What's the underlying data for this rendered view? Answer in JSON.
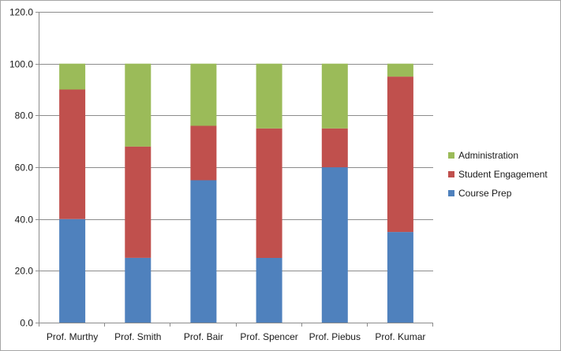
{
  "chart_data": {
    "type": "bar",
    "stacked": true,
    "categories": [
      "Prof. Murthy",
      "Prof. Smith",
      "Prof. Bair",
      "Prof. Spencer",
      "Prof. Piebus",
      "Prof. Kumar"
    ],
    "series": [
      {
        "name": "Course Prep",
        "color": "#4f81bd",
        "values": [
          40,
          25,
          55,
          25,
          60,
          35
        ]
      },
      {
        "name": "Student Engagement",
        "color": "#c0504d",
        "values": [
          50,
          43,
          21,
          50,
          15,
          60
        ]
      },
      {
        "name": "Administration",
        "color": "#9bbb59",
        "values": [
          10,
          32,
          24,
          25,
          25,
          5
        ]
      }
    ],
    "ylim": [
      0,
      120
    ],
    "yticks": [
      "0.0",
      "20.0",
      "40.0",
      "60.0",
      "80.0",
      "100.0",
      "120.0"
    ],
    "grid": true,
    "legend": {
      "position": "right",
      "entries": [
        "Administration",
        "Student Engagement",
        "Course Prep"
      ]
    }
  }
}
